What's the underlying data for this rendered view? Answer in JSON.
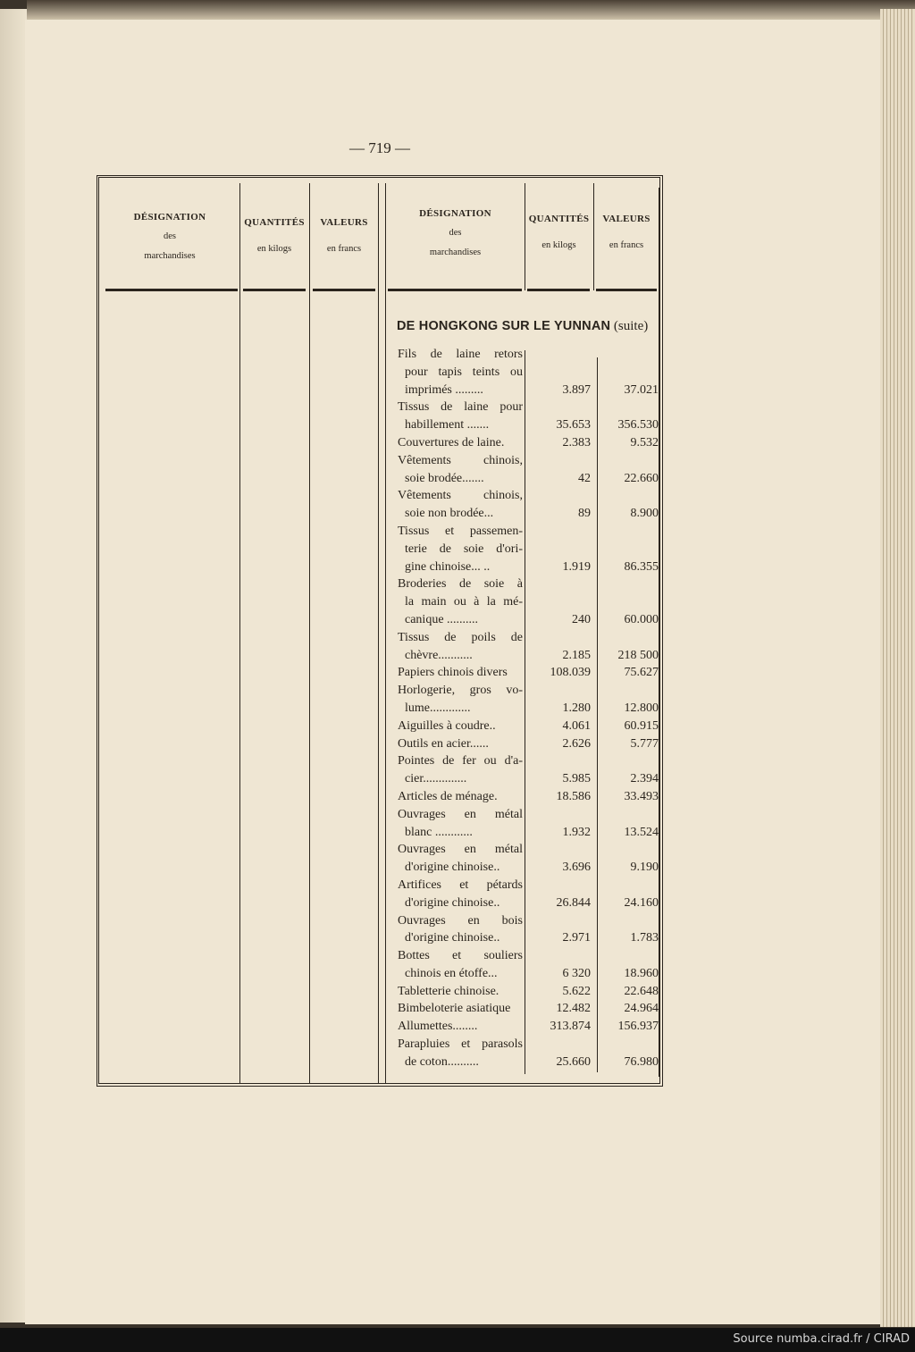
{
  "page_number": "— 719 —",
  "source": "Source numba.cirad.fr / CIRAD",
  "columns": {
    "designation": [
      "DÉSIGNATION",
      "des",
      "marchandises"
    ],
    "quantites": [
      "QUANTITÉS",
      "en kilogs"
    ],
    "valeurs": [
      "VALEURS",
      "en francs"
    ]
  },
  "section_title": "DE HONGKONG SUR LE YUNNAN",
  "section_suffix": "(suite)",
  "items": [
    {
      "lines": [
        "Fils de laine retors",
        "pour tapis teints ou",
        "imprimés ........."
      ],
      "quantite": "3.897",
      "valeur": "37.021"
    },
    {
      "lines": [
        "Tissus de laine pour",
        "habillement ......."
      ],
      "quantite": "35.653",
      "valeur": "356.530"
    },
    {
      "lines": [
        "Couvertures de laine."
      ],
      "quantite": "2.383",
      "valeur": "9.532"
    },
    {
      "lines": [
        "Vêtements chinois,",
        "soie brodée......."
      ],
      "quantite": "42",
      "valeur": "22.660"
    },
    {
      "lines": [
        "Vêtements chinois,",
        "soie non brodée..."
      ],
      "quantite": "89",
      "valeur": "8.900"
    },
    {
      "lines": [
        "Tissus et passemen-",
        "terie de soie d'ori-",
        "gine chinoise... .."
      ],
      "quantite": "1.919",
      "valeur": "86.355"
    },
    {
      "lines": [
        "Broderies de soie à",
        "la main ou à la mé-",
        "canique .........."
      ],
      "quantite": "240",
      "valeur": "60.000"
    },
    {
      "lines": [
        "Tissus de poils de",
        "chèvre..........."
      ],
      "quantite": "2.185",
      "valeur": "218 500"
    },
    {
      "lines": [
        "Papiers chinois divers"
      ],
      "quantite": "108.039",
      "valeur": "75.627"
    },
    {
      "lines": [
        "Horlogerie, gros vo-",
        "lume............."
      ],
      "quantite": "1.280",
      "valeur": "12.800"
    },
    {
      "lines": [
        "Aiguilles à coudre.."
      ],
      "quantite": "4.061",
      "valeur": "60.915"
    },
    {
      "lines": [
        "Outils en acier......"
      ],
      "quantite": "2.626",
      "valeur": "5.777"
    },
    {
      "lines": [
        "Pointes de fer ou d'a-",
        "cier.............."
      ],
      "quantite": "5.985",
      "valeur": "2.394"
    },
    {
      "lines": [
        "Articles de ménage."
      ],
      "quantite": "18.586",
      "valeur": "33.493"
    },
    {
      "lines": [
        "Ouvrages en métal",
        "blanc ............"
      ],
      "quantite": "1.932",
      "valeur": "13.524"
    },
    {
      "lines": [
        "Ouvrages en métal",
        "d'origine chinoise.."
      ],
      "quantite": "3.696",
      "valeur": "9.190"
    },
    {
      "lines": [
        "Artifices et pétards",
        "d'origine chinoise.."
      ],
      "quantite": "26.844",
      "valeur": "24.160"
    },
    {
      "lines": [
        "Ouvrages en bois",
        "d'origine chinoise.."
      ],
      "quantite": "2.971",
      "valeur": "1.783"
    },
    {
      "lines": [
        "Bottes et souliers",
        "chinois en étoffe..."
      ],
      "quantite": "6 320",
      "valeur": "18.960"
    },
    {
      "lines": [
        "Tabletterie chinoise."
      ],
      "quantite": "5.622",
      "valeur": "22.648"
    },
    {
      "lines": [
        "Bimbeloterie asiatique"
      ],
      "quantite": "12.482",
      "valeur": "24.964"
    },
    {
      "lines": [
        "Allumettes........"
      ],
      "quantite": "313.874",
      "valeur": "156.937"
    },
    {
      "lines": [
        "Parapluies et parasols",
        "de coton.........."
      ],
      "quantite": "25.660",
      "valeur": "76.980"
    }
  ]
}
